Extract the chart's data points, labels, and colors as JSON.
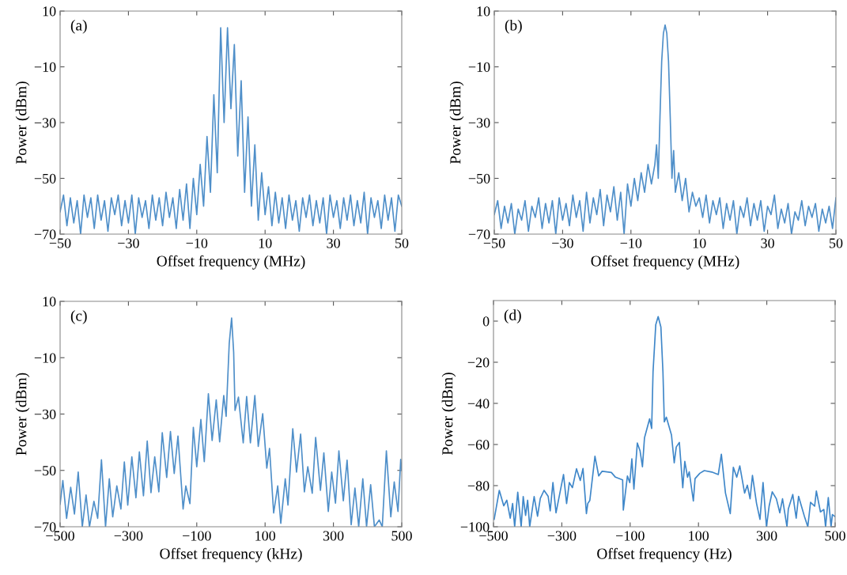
{
  "chart_data": [
    {
      "type": "line",
      "xlabel": "Offset frequency (MHz)",
      "ylabel": "Power (dBm)",
      "annotations": [
        "(a)"
      ],
      "xlim": [
        -50,
        50
      ],
      "ylim": [
        -70,
        10
      ],
      "xticks": [
        -50,
        -30,
        -10,
        10,
        30,
        50
      ],
      "yticks": [
        10,
        -10,
        -30,
        -50,
        -70
      ],
      "grid": false,
      "legend": false,
      "series": [
        {
          "color": "#4f8fc9",
          "x": [
            -50,
            -49,
            -48,
            -47,
            -46,
            -45,
            -44,
            -43,
            -42,
            -41,
            -40,
            -39,
            -38,
            -37,
            -36,
            -35,
            -34,
            -33,
            -32,
            -31,
            -30,
            -29,
            -28,
            -27,
            -26,
            -25,
            -24,
            -23,
            -22,
            -21,
            -20,
            -19,
            -18,
            -17,
            -16,
            -15,
            -14,
            -13,
            -12,
            -11,
            -10,
            -9,
            -8,
            -7,
            -6,
            -5,
            -4,
            -3,
            -2,
            -1,
            0,
            1,
            2,
            3,
            4,
            5,
            6,
            7,
            8,
            9,
            10,
            11,
            12,
            13,
            14,
            15,
            16,
            17,
            18,
            19,
            20,
            21,
            22,
            23,
            24,
            25,
            26,
            27,
            28,
            29,
            30,
            31,
            32,
            33,
            34,
            35,
            36,
            37,
            38,
            39,
            40,
            41,
            42,
            43,
            44,
            45,
            46,
            47,
            48,
            49,
            50
          ],
          "values": [
            -62,
            -56,
            -67,
            -57,
            -66,
            -58,
            -70,
            -56,
            -64,
            -57,
            -68,
            -56,
            -65,
            -58,
            -69,
            -57,
            -63,
            -56,
            -67,
            -58,
            -66,
            -56,
            -70,
            -57,
            -64,
            -58,
            -68,
            -56,
            -65,
            -57,
            -67,
            -55,
            -64,
            -57,
            -68,
            -54,
            -65,
            -52,
            -68,
            -50,
            -63,
            -45,
            -60,
            -35,
            -55,
            -20,
            -48,
            4,
            -30,
            4,
            -25,
            -2,
            -42,
            -15,
            -55,
            -28,
            -60,
            -38,
            -65,
            -48,
            -63,
            -53,
            -67,
            -55,
            -66,
            -57,
            -68,
            -56,
            -65,
            -58,
            -69,
            -57,
            -64,
            -56,
            -67,
            -58,
            -66,
            -57,
            -70,
            -56,
            -64,
            -58,
            -68,
            -57,
            -65,
            -56,
            -67,
            -58,
            -66,
            -55,
            -70,
            -57,
            -64,
            -58,
            -68,
            -56,
            -65,
            -57,
            -69,
            -56,
            -60
          ]
        }
      ]
    },
    {
      "type": "line",
      "xlabel": "Offset frequency (MHz)",
      "ylabel": "Power (dBm)",
      "annotations": [
        "(b)"
      ],
      "xlim": [
        -50,
        50
      ],
      "ylim": [
        -70,
        10
      ],
      "xticks": [
        -50,
        -30,
        -10,
        10,
        30,
        50
      ],
      "yticks": [
        10,
        -10,
        -30,
        -50,
        -70
      ],
      "grid": false,
      "legend": false,
      "series": [
        {
          "color": "#4f8fc9",
          "x": [
            -50,
            -49,
            -48,
            -47,
            -46,
            -45,
            -44,
            -43,
            -42,
            -41,
            -40,
            -39,
            -38,
            -37,
            -36,
            -35,
            -34,
            -33,
            -32,
            -31,
            -30,
            -29,
            -28,
            -27,
            -26,
            -25,
            -24,
            -23,
            -22,
            -21,
            -20,
            -19,
            -18,
            -17,
            -16,
            -15,
            -14,
            -13,
            -12,
            -11,
            -10,
            -9,
            -8,
            -7,
            -6,
            -5,
            -4,
            -3,
            -2.5,
            -2,
            -1.5,
            -1,
            -0.5,
            0,
            0.5,
            1,
            1.5,
            2,
            2.5,
            3,
            4,
            5,
            6,
            7,
            8,
            9,
            10,
            11,
            12,
            13,
            14,
            15,
            16,
            17,
            18,
            19,
            20,
            21,
            22,
            23,
            24,
            25,
            26,
            27,
            28,
            29,
            30,
            31,
            32,
            33,
            34,
            35,
            36,
            37,
            38,
            39,
            40,
            41,
            42,
            43,
            44,
            45,
            46,
            47,
            48,
            49,
            50
          ],
          "values": [
            -63,
            -58,
            -68,
            -60,
            -66,
            -59,
            -70,
            -61,
            -65,
            -58,
            -69,
            -60,
            -64,
            -57,
            -68,
            -59,
            -66,
            -58,
            -70,
            -57,
            -65,
            -59,
            -67,
            -56,
            -64,
            -58,
            -69,
            -55,
            -66,
            -57,
            -63,
            -54,
            -67,
            -56,
            -62,
            -53,
            -65,
            -55,
            -70,
            -52,
            -60,
            -50,
            -58,
            -48,
            -55,
            -45,
            -52,
            -45,
            -38,
            -50,
            -28,
            -8,
            2,
            5,
            2,
            -8,
            -28,
            -50,
            -40,
            -55,
            -48,
            -58,
            -50,
            -62,
            -55,
            -60,
            -57,
            -64,
            -56,
            -66,
            -58,
            -63,
            -57,
            -68,
            -59,
            -65,
            -58,
            -70,
            -60,
            -64,
            -57,
            -67,
            -59,
            -65,
            -58,
            -69,
            -60,
            -63,
            -56,
            -68,
            -61,
            -66,
            -59,
            -70,
            -62,
            -65,
            -58,
            -67,
            -60,
            -64,
            -59,
            -69,
            -61,
            -66,
            -60,
            -68,
            -57
          ]
        }
      ]
    },
    {
      "type": "line",
      "xlabel": "Offset frequency (kHz)",
      "ylabel": "Power (dBm)",
      "annotations": [
        "(c)"
      ],
      "xlim": [
        -500,
        500
      ],
      "ylim": [
        -70,
        10
      ],
      "xticks": [
        -500,
        -300,
        -100,
        100,
        300,
        500
      ],
      "yticks": [
        10,
        -10,
        -30,
        -50,
        -70
      ],
      "grid": false,
      "legend": false,
      "series": [
        {
          "color": "#4f8fc9",
          "x": [
            -500,
            -492,
            -481,
            -469,
            -458,
            -447,
            -435,
            -424,
            -414,
            -401,
            -390,
            -379,
            -367,
            -356,
            -346,
            -334,
            -322,
            -312,
            -302,
            -290,
            -278,
            -268,
            -256,
            -245,
            -234,
            -223,
            -211,
            -201,
            -188,
            -177,
            -166,
            -155,
            -140,
            -132,
            -120,
            -110,
            -100,
            -88,
            -78,
            -66,
            -55,
            -43,
            -33,
            -21,
            -14,
            -5,
            2,
            8,
            12,
            22,
            36,
            46,
            57,
            70,
            80,
            93,
            105,
            113,
            125,
            137,
            146,
            159,
            167,
            181,
            192,
            204,
            215,
            225,
            238,
            248,
            262,
            272,
            285,
            295,
            306,
            316,
            329,
            340,
            352,
            363,
            374,
            386,
            397,
            409,
            420,
            434,
            443,
            455,
            468,
            478,
            489,
            497,
            500
          ],
          "values": [
            -62,
            -53.6,
            -67,
            -56,
            -65.5,
            -50.6,
            -70,
            -58.7,
            -70,
            -61,
            -67,
            -46.2,
            -70,
            -53,
            -66.5,
            -55.5,
            -63.7,
            -47,
            -62.3,
            -45.2,
            -59.7,
            -43.4,
            -59,
            -39.6,
            -57.9,
            -45.2,
            -57.6,
            -36.6,
            -52.5,
            -36.2,
            -51.1,
            -37.8,
            -63.7,
            -55.5,
            -61.8,
            -34.7,
            -48.7,
            -31.9,
            -46.9,
            -22.8,
            -39.4,
            -25,
            -39.9,
            -23.4,
            -30.8,
            -5,
            4.1,
            -8,
            -28.7,
            -24,
            -40.2,
            -23.8,
            -40.2,
            -23.4,
            -41.5,
            -29.9,
            -49.2,
            -42.2,
            -65.1,
            -55.5,
            -68.8,
            -53,
            -62.3,
            -35.2,
            -50.6,
            -37.1,
            -57.6,
            -48.7,
            -58.1,
            -38.3,
            -57.1,
            -43.8,
            -64.6,
            -50.6,
            -61.6,
            -43.1,
            -60.8,
            -46.4,
            -69.3,
            -56.3,
            -70,
            -53,
            -70,
            -55.1,
            -70,
            -67.6,
            -70,
            -43.1,
            -66.5,
            -54.1,
            -64.6,
            -46.1,
            -50
          ]
        }
      ]
    },
    {
      "type": "line",
      "xlabel": "Offset frequency (Hz)",
      "ylabel": "Power (dBm)",
      "annotations": [
        "(d)"
      ],
      "xlim": [
        -500,
        500
      ],
      "ylim": [
        -100,
        10
      ],
      "xticks": [
        -500,
        -300,
        -100,
        100,
        300,
        500
      ],
      "yticks": [
        0,
        -20,
        -40,
        -60,
        -80,
        -100
      ],
      "grid": false,
      "legend": false,
      "series": [
        {
          "color": "#3f87c9",
          "x": [
            -498,
            -483,
            -470,
            -461,
            -451,
            -444,
            -438,
            -429,
            -419,
            -413,
            -406,
            -400,
            -394,
            -381,
            -371,
            -363,
            -352,
            -340,
            -334,
            -326,
            -317,
            -295,
            -286,
            -278,
            -269,
            -257,
            -246,
            -238,
            -228,
            -224,
            -218,
            -203,
            -192,
            -182,
            -155,
            -143,
            -122,
            -120,
            -108,
            -101,
            -95,
            -89,
            -79,
            -71,
            -64,
            -58,
            -43,
            -37,
            -33,
            -25,
            -18,
            -10,
            -4,
            0,
            6,
            21,
            29,
            35,
            44,
            54,
            60,
            68,
            73,
            85,
            90,
            104,
            117,
            139,
            158,
            167,
            179,
            193,
            202,
            212,
            221,
            235,
            243,
            251,
            258,
            270,
            280,
            289,
            299,
            307,
            316,
            328,
            338,
            346,
            359,
            363,
            376,
            386,
            393,
            410,
            420,
            428,
            440,
            445,
            457,
            467,
            472,
            480,
            488,
            492,
            500
          ],
          "values": [
            -96.4,
            -82.3,
            -89.8,
            -87.1,
            -95.8,
            -88.7,
            -100,
            -83.2,
            -100,
            -85.3,
            -94.5,
            -87.1,
            -100,
            -85.3,
            -94.9,
            -86.2,
            -82.3,
            -85.2,
            -92.3,
            -78.5,
            -93.2,
            -74.6,
            -88.7,
            -78.5,
            -81,
            -71.8,
            -77.5,
            -71.7,
            -93.6,
            -88.7,
            -87.2,
            -65.7,
            -75.3,
            -73,
            -73.6,
            -75.9,
            -77.2,
            -91.9,
            -75.3,
            -78.5,
            -67,
            -81.7,
            -59.3,
            -63.1,
            -70.8,
            -56.7,
            -47.5,
            -52.2,
            -24.7,
            -1.7,
            2.2,
            -2.9,
            -24.7,
            -49,
            -46.7,
            -55.4,
            -68.9,
            -61.2,
            -59,
            -81,
            -68.2,
            -75.9,
            -73.3,
            -87.5,
            -76.6,
            -74,
            -72.7,
            -73.4,
            -74.6,
            -64.7,
            -83.6,
            -93.6,
            -71.1,
            -75.9,
            -70.4,
            -83.6,
            -79.8,
            -86.4,
            -75,
            -88.7,
            -96.4,
            -78.5,
            -100,
            -89.8,
            -83,
            -86.4,
            -93.2,
            -86.4,
            -100,
            -91.3,
            -84.3,
            -95.8,
            -85.2,
            -94.9,
            -100,
            -88.1,
            -90,
            -82.6,
            -92.8,
            -91.6,
            -100,
            -85.8,
            -100,
            -94.1,
            -95.1
          ]
        }
      ]
    }
  ]
}
